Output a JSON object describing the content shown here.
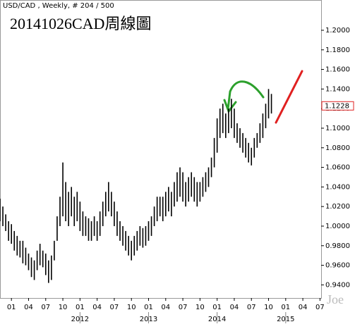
{
  "chart_data": {
    "type": "range_bar",
    "header": "USD/CAD , Weekly, # 204 / 500",
    "title": "20141026CAD周線圖",
    "watermark": "Joe",
    "color": "#000000",
    "x": [
      -2,
      -1.5,
      -1,
      -0.5,
      0,
      0.5,
      1,
      1.5,
      2,
      2.5,
      3,
      3.5,
      4,
      4.5,
      5,
      5.5,
      6,
      6.5,
      7,
      7.5,
      8,
      8.5,
      9,
      9.5,
      10,
      10.5,
      11,
      11.5,
      12,
      12.5,
      13,
      13.5,
      14,
      14.5,
      15,
      15.5,
      16,
      16.5,
      17,
      17.5,
      18,
      18.5,
      19,
      19.5,
      20,
      20.5,
      21,
      21.5,
      22,
      22.5,
      23,
      23.5,
      24,
      24.5,
      25,
      25.5,
      26,
      26.5,
      27,
      27.5,
      28,
      28.5,
      29,
      29.5,
      30,
      30.5,
      31,
      31.5,
      32,
      32.5,
      33,
      33.5,
      34,
      34.5,
      35,
      35.5,
      36,
      36.5,
      37,
      37.5,
      38,
      38.5,
      39,
      39.5,
      40,
      40.5,
      41,
      41.5,
      42,
      42.5,
      43,
      43.5,
      44,
      44.5,
      45,
      45.5
    ],
    "low": [
      1.005,
      1.0,
      0.995,
      0.985,
      0.982,
      0.975,
      0.97,
      0.968,
      0.962,
      0.96,
      0.955,
      0.948,
      0.945,
      0.955,
      0.96,
      0.958,
      0.95,
      0.942,
      0.945,
      0.965,
      0.985,
      1.0,
      1.01,
      1.005,
      1.0,
      1.01,
      1.0,
      1.005,
      0.995,
      0.99,
      0.99,
      0.985,
      0.985,
      0.99,
      0.985,
      0.99,
      1.0,
      1.01,
      1.015,
      1.01,
      1.0,
      0.99,
      0.985,
      0.98,
      0.975,
      0.97,
      0.965,
      0.97,
      0.975,
      0.98,
      0.978,
      0.98,
      0.985,
      0.99,
      1.0,
      1.005,
      1.01,
      1.005,
      1.01,
      1.015,
      1.01,
      1.02,
      1.025,
      1.03,
      1.025,
      1.02,
      1.025,
      1.03,
      1.025,
      1.02,
      1.025,
      1.03,
      1.035,
      1.04,
      1.05,
      1.06,
      1.075,
      1.09,
      1.095,
      1.09,
      1.095,
      1.1,
      1.09,
      1.085,
      1.08,
      1.075,
      1.07,
      1.065,
      1.062,
      1.07,
      1.08,
      1.085,
      1.09,
      1.1,
      1.11,
      1.115
    ],
    "high": [
      1.028,
      1.02,
      1.012,
      1.005,
      1.002,
      0.995,
      0.99,
      0.985,
      0.985,
      0.978,
      0.972,
      0.968,
      0.965,
      0.975,
      0.982,
      0.975,
      0.972,
      0.965,
      0.97,
      0.985,
      1.01,
      1.03,
      1.065,
      1.045,
      1.035,
      1.04,
      1.03,
      1.035,
      1.025,
      1.015,
      1.01,
      1.008,
      1.005,
      1.01,
      1.005,
      1.015,
      1.025,
      1.035,
      1.045,
      1.035,
      1.025,
      1.015,
      1.005,
      1.0,
      0.995,
      0.99,
      0.985,
      0.99,
      0.995,
      1.0,
      0.998,
      1.0,
      1.005,
      1.01,
      1.02,
      1.03,
      1.03,
      1.03,
      1.035,
      1.04,
      1.035,
      1.045,
      1.055,
      1.06,
      1.055,
      1.045,
      1.05,
      1.055,
      1.05,
      1.045,
      1.045,
      1.05,
      1.055,
      1.06,
      1.07,
      1.09,
      1.11,
      1.12,
      1.125,
      1.115,
      1.12,
      1.13,
      1.12,
      1.105,
      1.1,
      1.095,
      1.09,
      1.085,
      1.08,
      1.09,
      1.095,
      1.105,
      1.115,
      1.125,
      1.14,
      1.135
    ],
    "last_price": {
      "value": 1.1228,
      "label": "1.1228"
    },
    "xlim": [
      -2,
      54.2
    ],
    "xticks": [
      {
        "value": 0,
        "label": "01"
      },
      {
        "value": 3,
        "label": "04"
      },
      {
        "value": 6,
        "label": "07"
      },
      {
        "value": 9,
        "label": "10"
      },
      {
        "value": 12,
        "label": "01"
      },
      {
        "value": 15,
        "label": "04"
      },
      {
        "value": 18,
        "label": "07"
      },
      {
        "value": 21,
        "label": "10"
      },
      {
        "value": 24,
        "label": "01"
      },
      {
        "value": 27,
        "label": "04"
      },
      {
        "value": 30,
        "label": "07"
      },
      {
        "value": 33,
        "label": "10"
      },
      {
        "value": 36,
        "label": "01"
      },
      {
        "value": 39,
        "label": "04"
      },
      {
        "value": 42,
        "label": "07"
      },
      {
        "value": 45,
        "label": "10"
      },
      {
        "value": 48,
        "label": "01"
      },
      {
        "value": 51,
        "label": "04"
      },
      {
        "value": 54,
        "label": "07"
      }
    ],
    "year_labels": [
      {
        "value": 12,
        "label": "2012"
      },
      {
        "value": 24,
        "label": "2013"
      },
      {
        "value": 36,
        "label": "2014"
      },
      {
        "value": 48,
        "label": "2015"
      }
    ],
    "ylim": [
      0.9266,
      1.2309
    ],
    "yticks": [
      {
        "value": 0.94,
        "label": "0.9400"
      },
      {
        "value": 0.96,
        "label": "0.9600"
      },
      {
        "value": 0.98,
        "label": "0.9800"
      },
      {
        "value": 1.0,
        "label": "1.0000"
      },
      {
        "value": 1.02,
        "label": "1.0200"
      },
      {
        "value": 1.04,
        "label": "1.0400"
      },
      {
        "value": 1.06,
        "label": "1.0600"
      },
      {
        "value": 1.08,
        "label": "1.0800"
      },
      {
        "value": 1.1,
        "label": "1.1000"
      },
      {
        "value": 1.12,
        "label": "1.1200"
      },
      {
        "value": 1.14,
        "label": "1.1400"
      },
      {
        "value": 1.16,
        "label": "1.1600"
      },
      {
        "value": 1.18,
        "label": "1.1800"
      },
      {
        "value": 1.2,
        "label": "1.2000"
      }
    ]
  }
}
